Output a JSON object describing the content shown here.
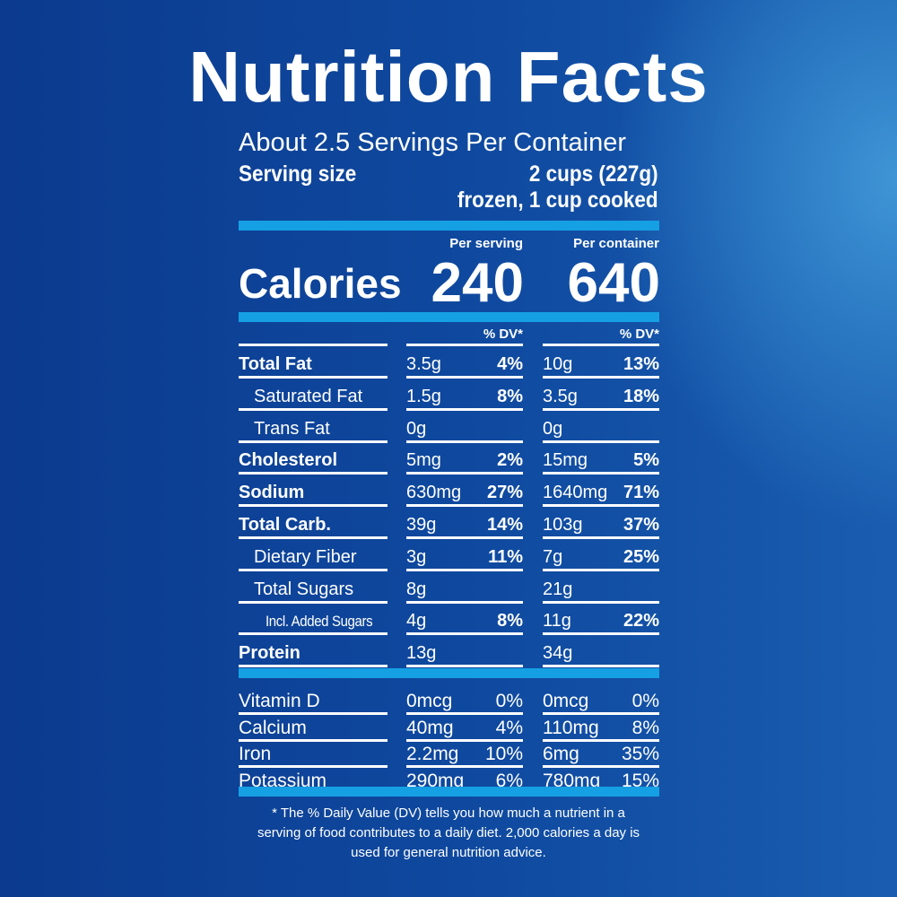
{
  "title": "Nutrition Facts",
  "servings_per_container": "About 2.5 Servings Per Container",
  "serving_size_label": "Serving size",
  "serving_size_value_1": "2 cups (227g)",
  "serving_size_value_2": "frozen, 1 cup cooked",
  "per_serving_label": "Per serving",
  "per_container_label": "Per container",
  "calories_label": "Calories",
  "calories_per_serving": "240",
  "calories_per_container": "640",
  "dv_header": "% DV*",
  "nutrients": [
    {
      "name": "Total Fat",
      "s_amt": "3.5g",
      "s_dv": "4%",
      "c_amt": "10g",
      "c_dv": "13%"
    },
    {
      "name": "Saturated Fat",
      "s_amt": "1.5g",
      "s_dv": "8%",
      "c_amt": "3.5g",
      "c_dv": "18%"
    },
    {
      "name": "Trans Fat",
      "s_amt": "0g",
      "s_dv": "",
      "c_amt": "0g",
      "c_dv": ""
    },
    {
      "name": "Cholesterol",
      "s_amt": "5mg",
      "s_dv": "2%",
      "c_amt": "15mg",
      "c_dv": "5%"
    },
    {
      "name": "Sodium",
      "s_amt": "630mg",
      "s_dv": "27%",
      "c_amt": "1640mg",
      "c_dv": "71%"
    },
    {
      "name": "Total Carb.",
      "s_amt": "39g",
      "s_dv": "14%",
      "c_amt": "103g",
      "c_dv": "37%"
    },
    {
      "name": "Dietary Fiber",
      "s_amt": "3g",
      "s_dv": "11%",
      "c_amt": "7g",
      "c_dv": "25%"
    },
    {
      "name": "Total Sugars",
      "s_amt": "8g",
      "s_dv": "",
      "c_amt": "21g",
      "c_dv": ""
    },
    {
      "name": "Incl. Added Sugars",
      "s_amt": "4g",
      "s_dv": "8%",
      "c_amt": "11g",
      "c_dv": "22%"
    },
    {
      "name": "Protein",
      "s_amt": "13g",
      "s_dv": "",
      "c_amt": "34g",
      "c_dv": ""
    }
  ],
  "vitamins": [
    {
      "name": "Vitamin D",
      "s_amt": "0mcg",
      "s_dv": "0%",
      "c_amt": "0mcg",
      "c_dv": "0%"
    },
    {
      "name": "Calcium",
      "s_amt": "40mg",
      "s_dv": "4%",
      "c_amt": "110mg",
      "c_dv": "8%"
    },
    {
      "name": "Iron",
      "s_amt": "2.2mg",
      "s_dv": "10%",
      "c_amt": "6mg",
      "c_dv": "35%"
    },
    {
      "name": "Potassium",
      "s_amt": "290mg",
      "s_dv": "6%",
      "c_amt": "780mg",
      "c_dv": "15%"
    }
  ],
  "footnote": "* The % Daily Value (DV) tells you how much a nutrient in a serving of food contributes to a daily diet. 2,000 calories a day is used for general nutrition advice."
}
